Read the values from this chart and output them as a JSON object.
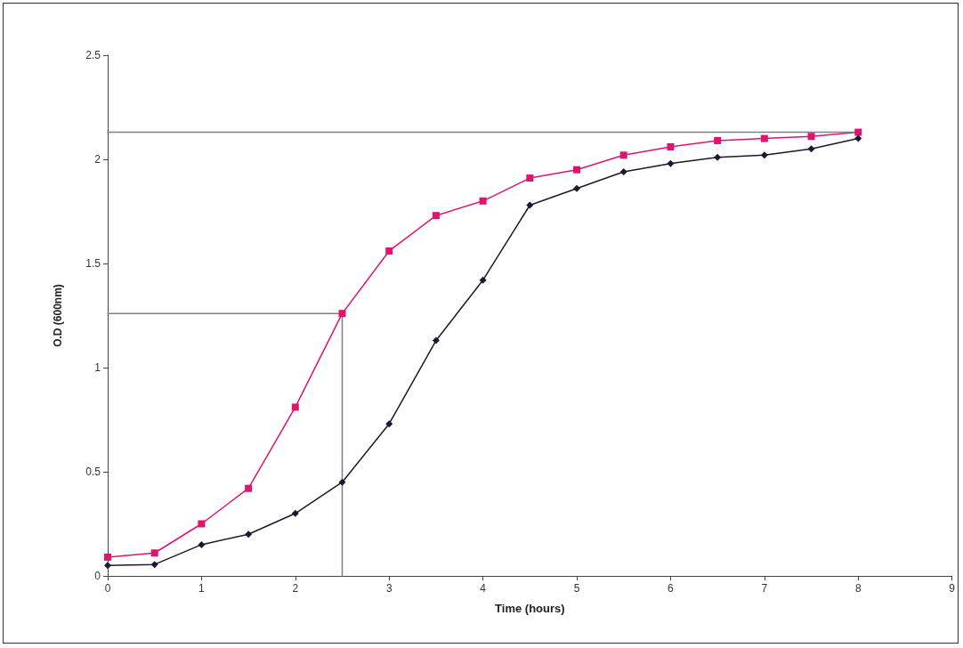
{
  "chart_data": {
    "type": "line",
    "xlabel": "Time (hours)",
    "ylabel": "O.D (600nm)",
    "x": [
      0,
      0.5,
      1,
      1.5,
      2,
      2.5,
      3,
      3.5,
      4,
      4.5,
      5,
      5.5,
      6,
      6.5,
      7,
      7.5,
      8
    ],
    "xlim": [
      0,
      9
    ],
    "xticks": [
      0,
      1,
      2,
      3,
      4,
      5,
      6,
      7,
      8,
      9
    ],
    "ylim": [
      0,
      2.5
    ],
    "yticks": [
      0,
      0.5,
      1,
      1.5,
      2,
      2.5
    ],
    "grid": false,
    "line_style": "solid",
    "series": [
      {
        "color": "#e0146e",
        "marker": "square",
        "values": [
          0.09,
          0.11,
          0.25,
          0.42,
          0.81,
          1.26,
          1.56,
          1.73,
          1.8,
          1.91,
          1.95,
          2.02,
          2.06,
          2.09,
          2.1,
          2.11,
          2.13
        ]
      },
      {
        "color": "#1a1a2e",
        "marker": "diamond",
        "values": [
          0.05,
          0.055,
          0.15,
          0.2,
          0.3,
          0.45,
          0.73,
          1.13,
          1.42,
          1.78,
          1.86,
          1.94,
          1.98,
          2.01,
          2.02,
          2.05,
          2.1
        ]
      },
      {
        "color": "#808080",
        "marker": "none",
        "x": [
          0,
          2.5,
          2.5
        ],
        "values": [
          1.26,
          1.26,
          0
        ]
      },
      {
        "color": "#808080",
        "marker": "none",
        "x": [
          0,
          8
        ],
        "values": [
          2.13,
          2.13
        ]
      }
    ]
  }
}
